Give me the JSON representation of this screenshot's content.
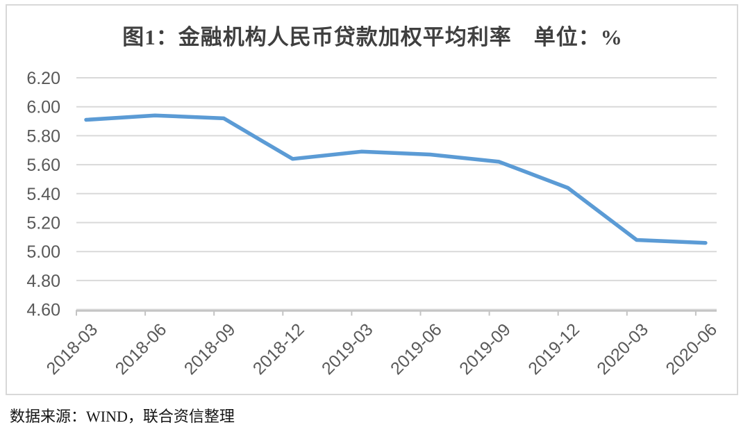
{
  "chart_data": {
    "type": "line",
    "title": "图1：金融机构人民币贷款加权平均利率　单位：%",
    "categories": [
      "2018-03",
      "2018-06",
      "2018-09",
      "2018-12",
      "2019-03",
      "2019-06",
      "2019-09",
      "2019-12",
      "2020-03",
      "2020-06"
    ],
    "series": [
      {
        "name": "金融机构人民币贷款加权平均利率",
        "values": [
          5.91,
          5.94,
          5.92,
          5.64,
          5.69,
          5.67,
          5.62,
          5.44,
          5.08,
          5.06
        ]
      }
    ],
    "ylim": [
      4.6,
      6.2
    ],
    "ytick_labels": [
      "6.20",
      "6.00",
      "5.80",
      "5.60",
      "5.40",
      "5.20",
      "5.00",
      "4.80",
      "4.60"
    ],
    "xlabel": "",
    "ylabel": "",
    "unit": "%",
    "grid": true,
    "legend_position": "none",
    "line_color": "#5B9BD5",
    "grid_color": "#d9d9d9",
    "axis_color": "#c3c3c3",
    "tick_label_color": "#595959"
  },
  "footer": {
    "source_text": "数据来源：WIND，联合资信整理"
  }
}
